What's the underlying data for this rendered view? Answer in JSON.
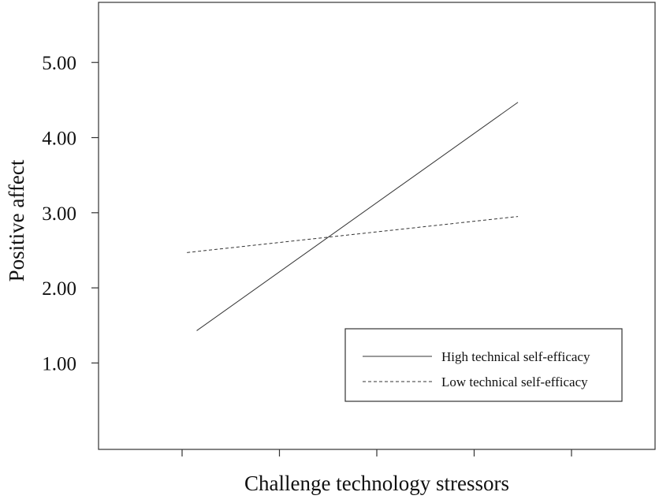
{
  "chart_data": {
    "type": "line",
    "title": "",
    "xlabel": "Challenge technology stressors",
    "ylabel": "Positive affect",
    "x": [
      1,
      2,
      3,
      4,
      5
    ],
    "yticks": [
      "1.00",
      "2.00",
      "3.00",
      "4.00",
      "5.00"
    ],
    "ylim": [
      -0.15,
      5.8
    ],
    "grid": false,
    "legend_position": "bottom-right",
    "series": [
      {
        "name": "High technical self-efficacy",
        "style": "solid",
        "x": [
          1.15,
          4.45
        ],
        "y": [
          1.43,
          4.47
        ]
      },
      {
        "name": "Low technical self-efficacy",
        "style": "dashed",
        "x": [
          1.05,
          4.45
        ],
        "y": [
          2.47,
          2.95
        ]
      }
    ]
  }
}
